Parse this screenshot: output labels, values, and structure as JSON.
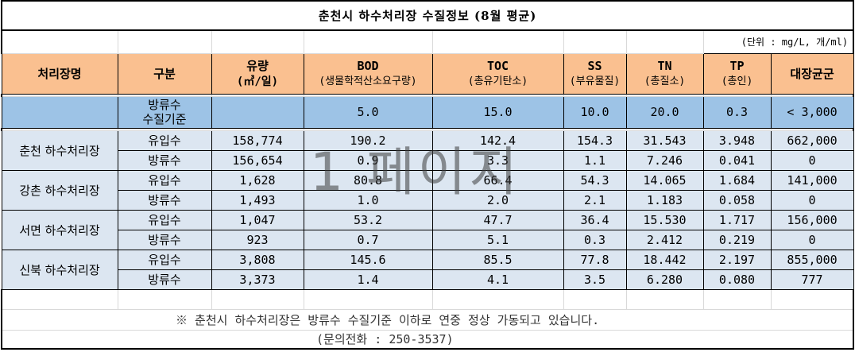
{
  "title": "춘천시 하수처리장 수질정보 (8월 평균)",
  "unit_note": "(단위 : mg/L, 개/ml)",
  "headers": {
    "plant": "처리장명",
    "kind": "구분",
    "flow": "유량",
    "flow_unit": "(㎥/일)",
    "bod": "BOD",
    "bod_sub": "(생물학적산소요구량)",
    "toc": "TOC",
    "toc_sub": "(총유기탄소)",
    "ss": "SS",
    "ss_sub": "(부유물질)",
    "tn": "TN",
    "tn_sub": "(총질소)",
    "tp": "TP",
    "tp_sub": "(총인)",
    "coliform": "대장균군"
  },
  "standard": {
    "label_line1": "방류수",
    "label_line2": "수질기준",
    "bod": "5.0",
    "toc": "15.0",
    "ss": "10.0",
    "tn": "20.0",
    "tp": "0.3",
    "coliform": "< 3,000"
  },
  "plants": [
    {
      "name": "춘천 하수처리장",
      "rows": [
        {
          "kind": "유입수",
          "flow": "158,774",
          "bod": "190.2",
          "toc": "142.4",
          "ss": "154.3",
          "tn": "31.543",
          "tp": "3.948",
          "coliform": "662,000"
        },
        {
          "kind": "방류수",
          "flow": "156,654",
          "bod": "0.9",
          "toc": "3.3",
          "ss": "1.1",
          "tn": "7.246",
          "tp": "0.041",
          "coliform": "0"
        }
      ]
    },
    {
      "name": "강촌 하수처리장",
      "rows": [
        {
          "kind": "유입수",
          "flow": "1,628",
          "bod": "80.8",
          "toc": "66.4",
          "ss": "54.3",
          "tn": "14.065",
          "tp": "1.684",
          "coliform": "141,000"
        },
        {
          "kind": "방류수",
          "flow": "1,493",
          "bod": "1.0",
          "toc": "2.0",
          "ss": "2.1",
          "tn": "1.183",
          "tp": "0.058",
          "coliform": "0"
        }
      ]
    },
    {
      "name": "서면 하수처리장",
      "rows": [
        {
          "kind": "유입수",
          "flow": "1,047",
          "bod": "53.2",
          "toc": "47.7",
          "ss": "36.4",
          "tn": "15.530",
          "tp": "1.717",
          "coliform": "156,000"
        },
        {
          "kind": "방류수",
          "flow": "923",
          "bod": "0.7",
          "toc": "5.1",
          "ss": "0.3",
          "tn": "2.412",
          "tp": "0.219",
          "coliform": "0"
        }
      ]
    },
    {
      "name": "신북 하수처리장",
      "rows": [
        {
          "kind": "유입수",
          "flow": "3,808",
          "bod": "145.6",
          "toc": "85.5",
          "ss": "77.8",
          "tn": "18.442",
          "tp": "2.197",
          "coliform": "855,000"
        },
        {
          "kind": "방류수",
          "flow": "3,373",
          "bod": "1.4",
          "toc": "4.1",
          "ss": "3.5",
          "tn": "6.280",
          "tp": "0.080",
          "coliform": "777"
        }
      ]
    }
  ],
  "footnote": "※ 춘천시 하수처리장은 방류수 수질기준 이하로 연중 정상 가동되고 있습니다.",
  "contact": "(문의전화 : 250-3537)",
  "watermark": "1 페이지",
  "colors": {
    "header_bg": "#fac090",
    "standard_bg": "#9dc3e6",
    "data_bg": "#dce6f1"
  }
}
